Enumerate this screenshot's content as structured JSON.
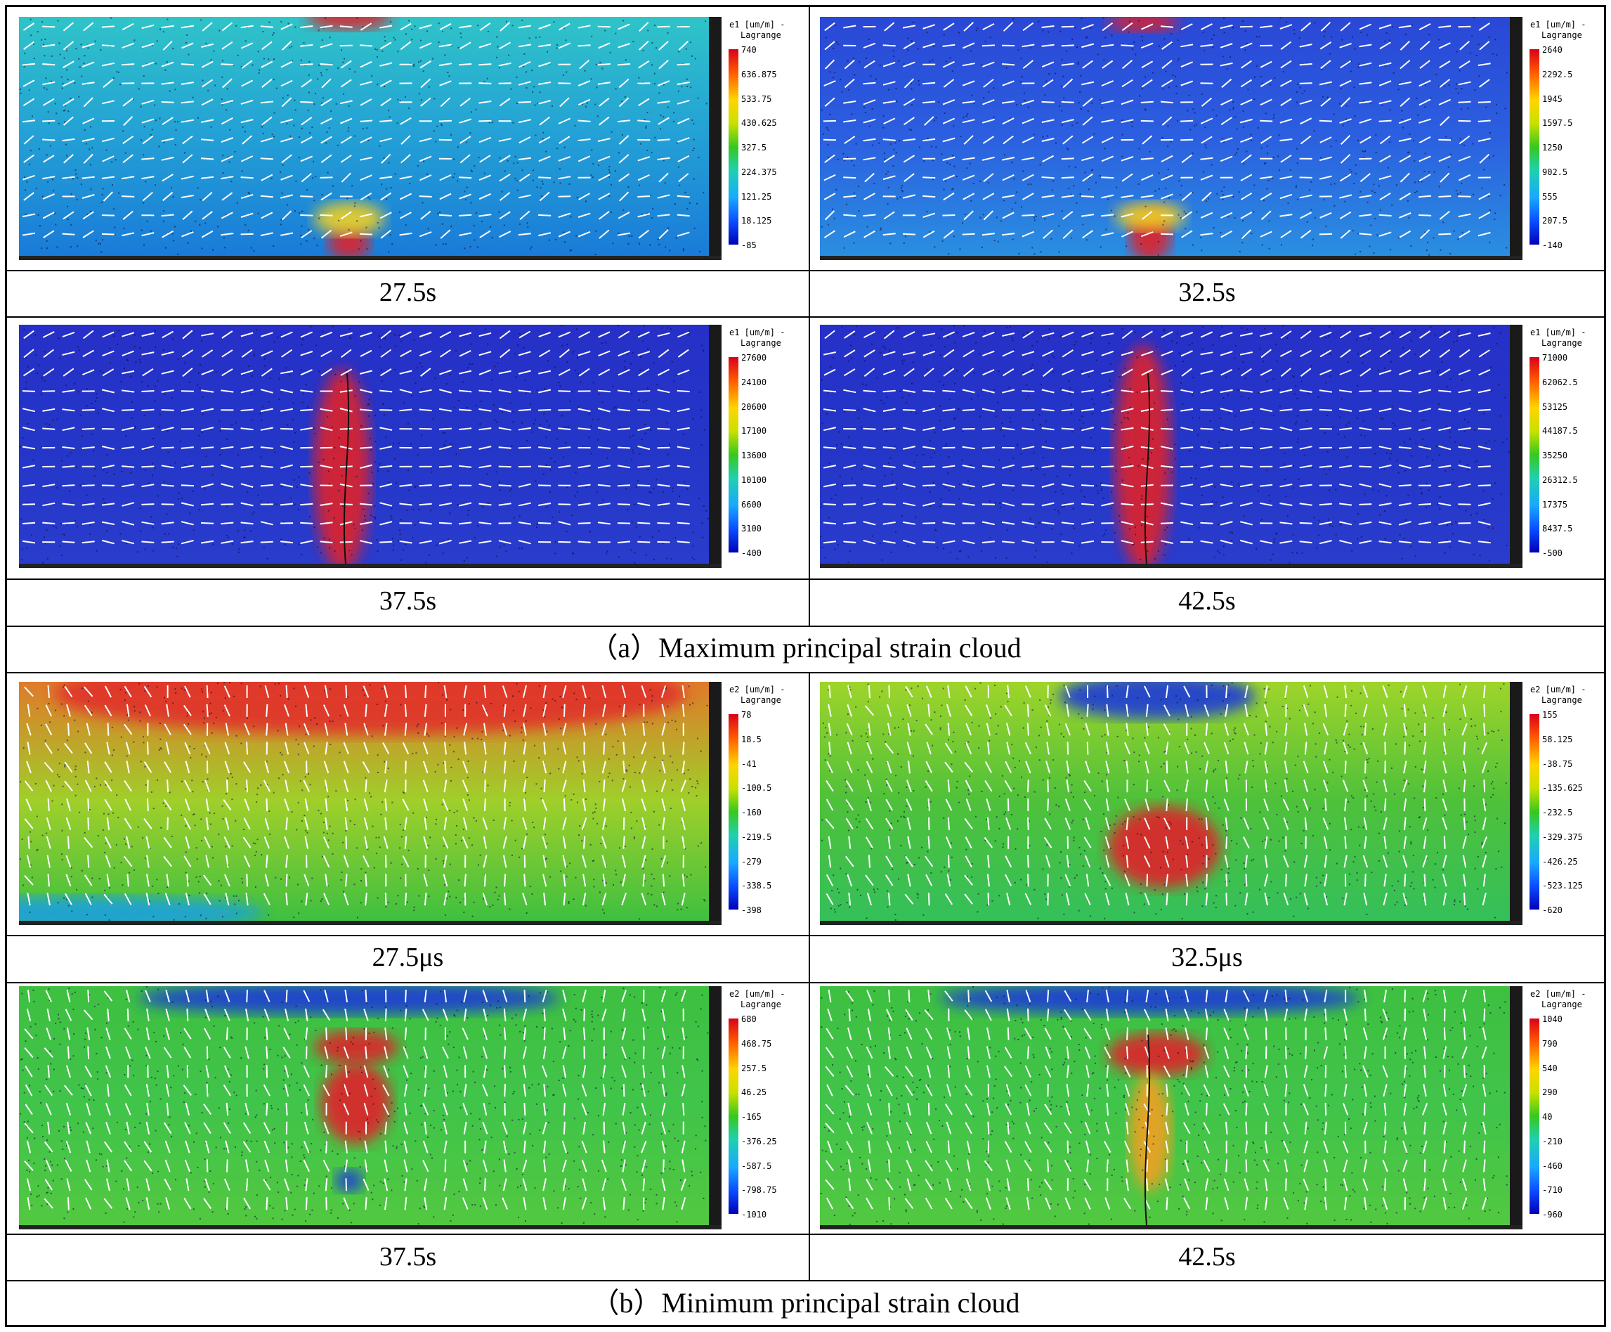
{
  "sections": [
    {
      "caption": "（a）Maximum principal strain cloud",
      "panels": [
        {
          "label": "27.5s",
          "cb_title": "e1 [um/m] -",
          "cb_sub": "Lagrange",
          "ticks": [
            "740",
            "636.875",
            "533.75",
            "430.625",
            "327.5",
            "224.375",
            "121.25",
            "18.125",
            "-85"
          ]
        },
        {
          "label": "32.5s",
          "cb_title": "e1 [um/m] -",
          "cb_sub": "Lagrange",
          "ticks": [
            "2640",
            "2292.5",
            "1945",
            "1597.5",
            "1250",
            "902.5",
            "555",
            "207.5",
            "-140"
          ]
        },
        {
          "label": "37.5s",
          "cb_title": "e1 [um/m] -",
          "cb_sub": "Lagrange",
          "ticks": [
            "27600",
            "24100",
            "20600",
            "17100",
            "13600",
            "10100",
            "6600",
            "3100",
            "-400"
          ]
        },
        {
          "label": "42.5s",
          "cb_title": "e1 [um/m] -",
          "cb_sub": "Lagrange",
          "ticks": [
            "71000",
            "62062.5",
            "53125",
            "44187.5",
            "35250",
            "26312.5",
            "17375",
            "8437.5",
            "-500"
          ]
        }
      ]
    },
    {
      "caption": "（b）Minimum principal strain cloud",
      "panels": [
        {
          "label": "27.5μs",
          "cb_title": "e2 [um/m] -",
          "cb_sub": "Lagrange",
          "ticks": [
            "78",
            "18.5",
            "-41",
            "-100.5",
            "-160",
            "-219.5",
            "-279",
            "-338.5",
            "-398"
          ]
        },
        {
          "label": "32.5μs",
          "cb_title": "e2 [um/m] -",
          "cb_sub": "Lagrange",
          "ticks": [
            "155",
            "58.125",
            "-38.75",
            "-135.625",
            "-232.5",
            "-329.375",
            "-426.25",
            "-523.125",
            "-620"
          ]
        },
        {
          "label": "37.5s",
          "cb_title": "e2 [um/m] -",
          "cb_sub": "Lagrange",
          "ticks": [
            "680",
            "468.75",
            "257.5",
            "46.25",
            "-165",
            "-376.25",
            "-587.5",
            "-798.75",
            "-1010"
          ]
        },
        {
          "label": "42.5s",
          "cb_title": "e2 [um/m] -",
          "cb_sub": "Lagrange",
          "ticks": [
            "1040",
            "790",
            "540",
            "290",
            "40",
            "-210",
            "-460",
            "-710",
            "-960"
          ]
        }
      ]
    }
  ],
  "colors": {
    "high": "#d9001a",
    "low": "#0000b8",
    "arrows": "#ffffff",
    "grid": "#000000"
  }
}
